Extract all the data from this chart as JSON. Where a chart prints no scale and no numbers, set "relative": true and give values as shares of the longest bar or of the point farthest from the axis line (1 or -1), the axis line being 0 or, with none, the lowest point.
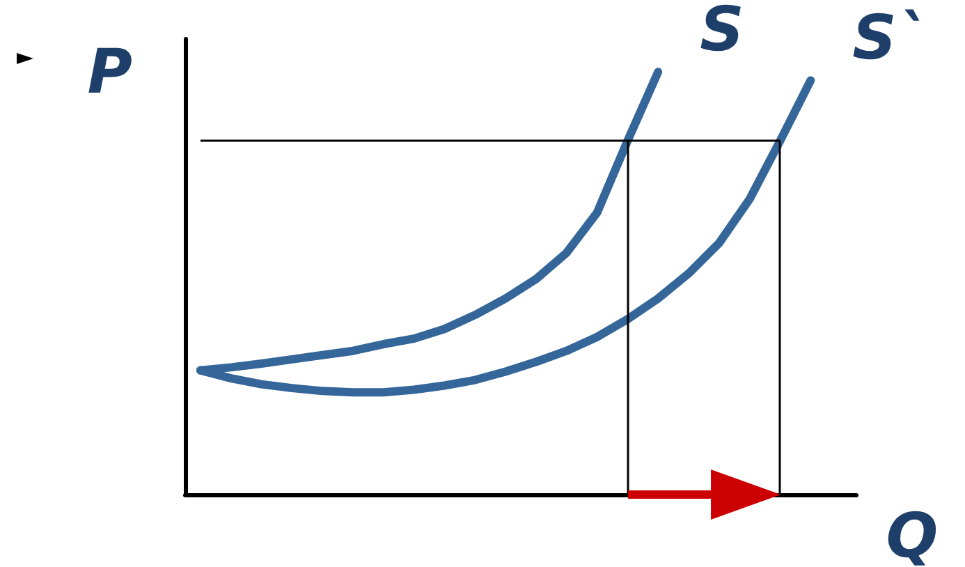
{
  "chart_data": {
    "type": "line",
    "relative": true,
    "xlabel": "Q",
    "ylabel": "P",
    "grid": false,
    "legend": false,
    "marker": "none",
    "line_style": "solid",
    "categories": [
      null,
      null,
      null,
      null,
      null,
      null,
      null,
      null,
      null,
      null,
      null,
      null,
      null,
      null,
      null,
      null,
      null,
      null,
      null,
      null,
      null,
      null
    ],
    "ref_lines": [
      {
        "axis": "y",
        "value": 0.837,
        "color": "#000000"
      }
    ],
    "series": [
      {
        "name": "S",
        "color": "#356699",
        "values": [
          0.294,
          0.301,
          0.31,
          0.32,
          0.33,
          0.34,
          0.356,
          0.369,
          0.392,
          0.425,
          0.464,
          0.51,
          0.572,
          0.667,
          0.837,
          1,
          null,
          null,
          null,
          null,
          null,
          null
        ]
      },
      {
        "name": "S`",
        "color": "#356699",
        "values": [
          0.294,
          0.275,
          0.261,
          0.252,
          0.245,
          0.242,
          0.242,
          0.248,
          0.258,
          0.271,
          0.291,
          0.314,
          0.34,
          0.373,
          0.415,
          0.464,
          0.523,
          0.595,
          0.699,
          0.837,
          0.98,
          null
        ]
      }
    ]
  }
}
